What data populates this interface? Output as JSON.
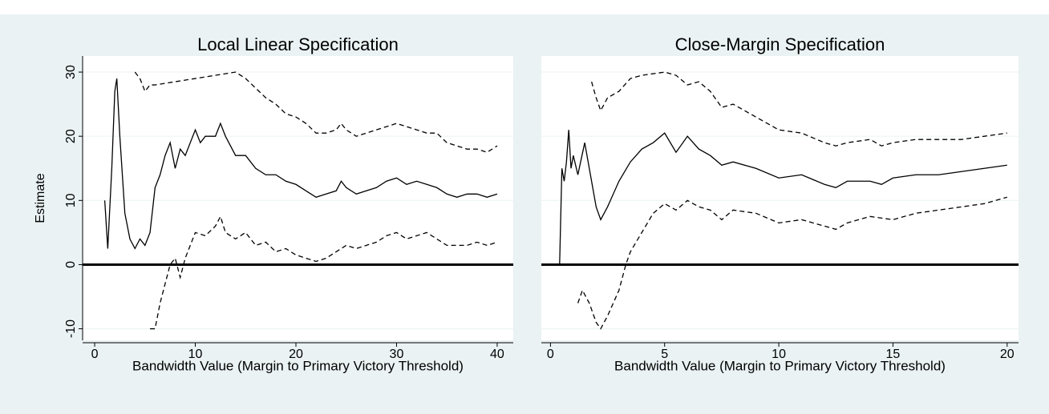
{
  "chart_data": [
    {
      "type": "line",
      "title": "Local Linear Specification",
      "xlabel": "Bandwidth Value (Margin to Primary Victory Threshold)",
      "ylabel": "Estimate",
      "xlim": [
        -1.2,
        41.6
      ],
      "ylim": [
        -11.8,
        32.5
      ],
      "xticks": [
        0,
        10,
        20,
        30,
        40
      ],
      "yticks": [
        -10,
        0,
        10,
        20,
        30
      ],
      "show_ytick_labels": true,
      "grid": true,
      "hline": 0,
      "series": [
        {
          "color": "#000000",
          "style": "solid",
          "x": [
            1,
            1.3,
            1.7,
            2,
            2.2,
            2.5,
            3,
            3.5,
            4,
            4.5,
            5,
            5.5,
            6,
            6.5,
            7,
            7.5,
            8,
            8.5,
            9,
            10,
            10.5,
            11,
            12,
            12.5,
            13,
            14,
            15,
            16,
            17,
            18,
            19,
            20,
            21,
            22,
            23,
            24,
            24.5,
            25,
            26,
            27,
            28,
            29,
            30,
            31,
            32,
            33,
            34,
            35,
            36,
            37,
            38,
            39,
            40
          ],
          "values": [
            10,
            2.5,
            15,
            27,
            29,
            20,
            8,
            4,
            2.5,
            4,
            3,
            5,
            12,
            14,
            17,
            19,
            15,
            18,
            17,
            21,
            19,
            20,
            20,
            22,
            20,
            17,
            17,
            15,
            14,
            14,
            13,
            12.5,
            11.5,
            10.5,
            11,
            11.5,
            13,
            12,
            11,
            11.5,
            12,
            13,
            13.5,
            12.5,
            13,
            12.5,
            12,
            11,
            10.5,
            11,
            11,
            10.5,
            11
          ]
        },
        {
          "color": "#000000",
          "style": "dashed",
          "x": [
            4,
            4.5,
            5,
            5.5,
            6,
            8,
            10,
            12,
            14,
            15,
            16,
            17,
            18,
            19,
            20,
            21,
            22,
            23,
            24,
            24.5,
            25,
            26,
            27,
            28,
            29,
            30,
            31,
            32,
            33,
            34,
            35,
            36,
            37,
            38,
            39,
            40
          ],
          "values": [
            30,
            29,
            27,
            28,
            28,
            28.5,
            29,
            29.5,
            30,
            29,
            27.5,
            26,
            25,
            23.5,
            23,
            22,
            20.5,
            20.5,
            21,
            22,
            21,
            20,
            20.5,
            21,
            21.5,
            22,
            21.5,
            21,
            20.5,
            20.5,
            19,
            18.5,
            18,
            18,
            17.5,
            18.5
          ]
        },
        {
          "color": "#000000",
          "style": "dashed",
          "x": [
            5.5,
            6,
            6.5,
            7,
            7.5,
            8,
            8.5,
            9,
            10,
            11,
            12,
            12.5,
            13,
            14,
            15,
            16,
            17,
            18,
            19,
            20,
            21,
            22,
            23,
            24,
            25,
            26,
            27,
            28,
            29,
            30,
            31,
            32,
            33,
            34,
            35,
            36,
            37,
            38,
            39,
            40
          ],
          "values": [
            -10,
            -10,
            -6,
            -3,
            0,
            1,
            -2,
            1,
            5,
            4.5,
            6,
            7.5,
            5,
            4,
            5,
            3,
            3.5,
            2,
            2.5,
            1.5,
            1,
            0.5,
            1,
            2,
            3,
            2.5,
            3,
            3.5,
            4.5,
            5,
            4,
            4.5,
            5,
            4,
            3,
            3,
            3,
            3.5,
            3,
            3.5
          ]
        }
      ]
    },
    {
      "type": "line",
      "title": "Close-Margin Specification",
      "xlabel": "Bandwidth Value (Margin to Primary Victory Threshold)",
      "xlim": [
        -0.4,
        20.5
      ],
      "ylim": [
        -11.8,
        32.5
      ],
      "xticks": [
        0,
        5,
        10,
        15,
        20
      ],
      "yticks": [
        -10,
        0,
        10,
        20,
        30
      ],
      "show_ytick_labels": false,
      "grid": true,
      "hline": 0,
      "series": [
        {
          "color": "#000000",
          "style": "solid",
          "x": [
            0.4,
            0.5,
            0.6,
            0.7,
            0.8,
            0.9,
            1,
            1.2,
            1.5,
            1.7,
            2,
            2.2,
            2.5,
            3,
            3.5,
            4,
            4.5,
            5,
            5.5,
            6,
            6.5,
            7,
            7.5,
            8,
            9,
            10,
            11,
            12,
            12.5,
            13,
            14,
            14.5,
            15,
            16,
            17,
            18,
            19,
            20
          ],
          "values": [
            0,
            15,
            13,
            16,
            21,
            15,
            17,
            14,
            19,
            15,
            9,
            7,
            9,
            13,
            16,
            18,
            19,
            20.5,
            17.5,
            20,
            18,
            17,
            15.5,
            16,
            15,
            13.5,
            14,
            12.5,
            12,
            13,
            13,
            12.5,
            13.5,
            14,
            14,
            14.5,
            15,
            15.5
          ]
        },
        {
          "color": "#000000",
          "style": "dashed",
          "x": [
            1.8,
            2,
            2.2,
            2.5,
            3,
            3.5,
            4,
            5,
            5.5,
            6,
            6.5,
            7,
            7.5,
            8,
            9,
            10,
            11,
            12,
            12.5,
            13,
            14,
            14.5,
            15,
            16,
            17,
            18,
            19,
            20
          ],
          "values": [
            28.5,
            26,
            24,
            26,
            27,
            29,
            29.5,
            30,
            29.5,
            28,
            28.5,
            27,
            24.5,
            25,
            23,
            21,
            20.5,
            19,
            18.5,
            19,
            19.5,
            18.5,
            19,
            19.5,
            19.5,
            19.5,
            20,
            20.5
          ]
        },
        {
          "color": "#000000",
          "style": "dashed",
          "x": [
            1.2,
            1.4,
            1.7,
            2,
            2.2,
            2.5,
            3,
            3.3,
            3.5,
            4,
            4.5,
            5,
            5.5,
            6,
            6.5,
            7,
            7.5,
            8,
            9,
            10,
            11,
            12,
            12.5,
            13,
            14,
            15,
            16,
            17,
            18,
            19,
            20
          ],
          "values": [
            -6,
            -4,
            -6,
            -9,
            -10,
            -8,
            -4,
            0,
            2,
            5,
            8,
            9.5,
            8.5,
            10,
            9,
            8.5,
            7,
            8.5,
            8,
            6.5,
            7,
            6,
            5.5,
            6.5,
            7.5,
            7,
            8,
            8.5,
            9,
            9.5,
            10.5
          ]
        }
      ]
    }
  ]
}
